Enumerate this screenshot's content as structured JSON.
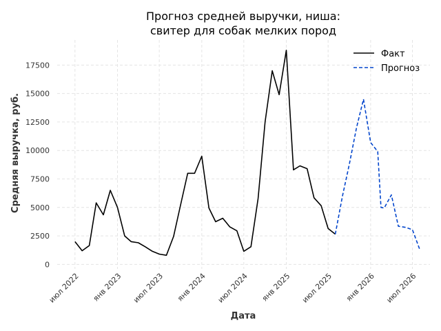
{
  "chart_data": {
    "type": "line",
    "title_lines": [
      "Прогноз средней выручки, ниша:",
      "свитер для собак мелких пород"
    ],
    "xlabel": "Дата",
    "ylabel": "Средняя выручка, руб.",
    "ylim": [
      -400,
      19700
    ],
    "yticks": [
      0,
      2500,
      5000,
      7500,
      10000,
      12500,
      15000,
      17500
    ],
    "ytick_labels": [
      "0",
      "2500",
      "5000",
      "7500",
      "10000",
      "12500",
      "15000",
      "17500"
    ],
    "xlim": [
      "2022-04-15",
      "2026-09-15"
    ],
    "xticks": [
      "2022-07-01",
      "2023-01-01",
      "2023-07-01",
      "2024-01-01",
      "2024-07-01",
      "2025-01-01",
      "2025-07-01",
      "2026-01-01",
      "2026-07-01"
    ],
    "xtick_labels": [
      "июл 2022",
      "янв 2023",
      "июл 2023",
      "янв 2024",
      "июл 2024",
      "янв 2025",
      "июл 2025",
      "янв 2026",
      "июл 2026"
    ],
    "grid": true,
    "legend_position": "top-right",
    "series": [
      {
        "name": "Факт",
        "color": "#000000",
        "style": "solid",
        "x": [
          "2022-07-01",
          "2022-08-01",
          "2022-09-01",
          "2022-10-01",
          "2022-11-01",
          "2022-12-01",
          "2023-01-01",
          "2023-02-01",
          "2023-03-01",
          "2023-04-01",
          "2023-05-01",
          "2023-06-01",
          "2023-07-01",
          "2023-08-01",
          "2023-09-01",
          "2023-10-01",
          "2023-11-01",
          "2023-12-01",
          "2024-01-01",
          "2024-02-01",
          "2024-03-01",
          "2024-04-01",
          "2024-05-01",
          "2024-06-01",
          "2024-07-01",
          "2024-08-01",
          "2024-09-01",
          "2024-10-01",
          "2024-11-01",
          "2024-12-01",
          "2025-01-01",
          "2025-02-01",
          "2025-03-01",
          "2025-04-01",
          "2025-05-01",
          "2025-06-01",
          "2025-07-01",
          "2025-08-01"
        ],
        "y": [
          2000,
          1200,
          1650,
          5400,
          4350,
          6500,
          5000,
          2500,
          2000,
          1900,
          1550,
          1150,
          900,
          800,
          2450,
          5200,
          8000,
          8000,
          9500,
          4950,
          3750,
          4050,
          3300,
          2950,
          1150,
          1550,
          5800,
          12500,
          17000,
          14900,
          18800,
          8300,
          8650,
          8400,
          5850,
          5150,
          3150,
          2650
        ]
      },
      {
        "name": "Прогноз",
        "color": "#0044cc",
        "style": "dashed",
        "x": [
          "2025-08-01",
          "2025-09-01",
          "2025-10-01",
          "2025-11-01",
          "2025-12-01",
          "2026-01-01",
          "2026-02-01",
          "2026-02-15",
          "2026-03-01",
          "2026-04-01",
          "2026-05-01",
          "2026-06-01",
          "2026-07-01",
          "2026-08-01"
        ],
        "y": [
          2650,
          6000,
          8800,
          12000,
          14500,
          10700,
          9900,
          5000,
          4950,
          6100,
          3350,
          3250,
          3050,
          1350
        ]
      }
    ]
  }
}
